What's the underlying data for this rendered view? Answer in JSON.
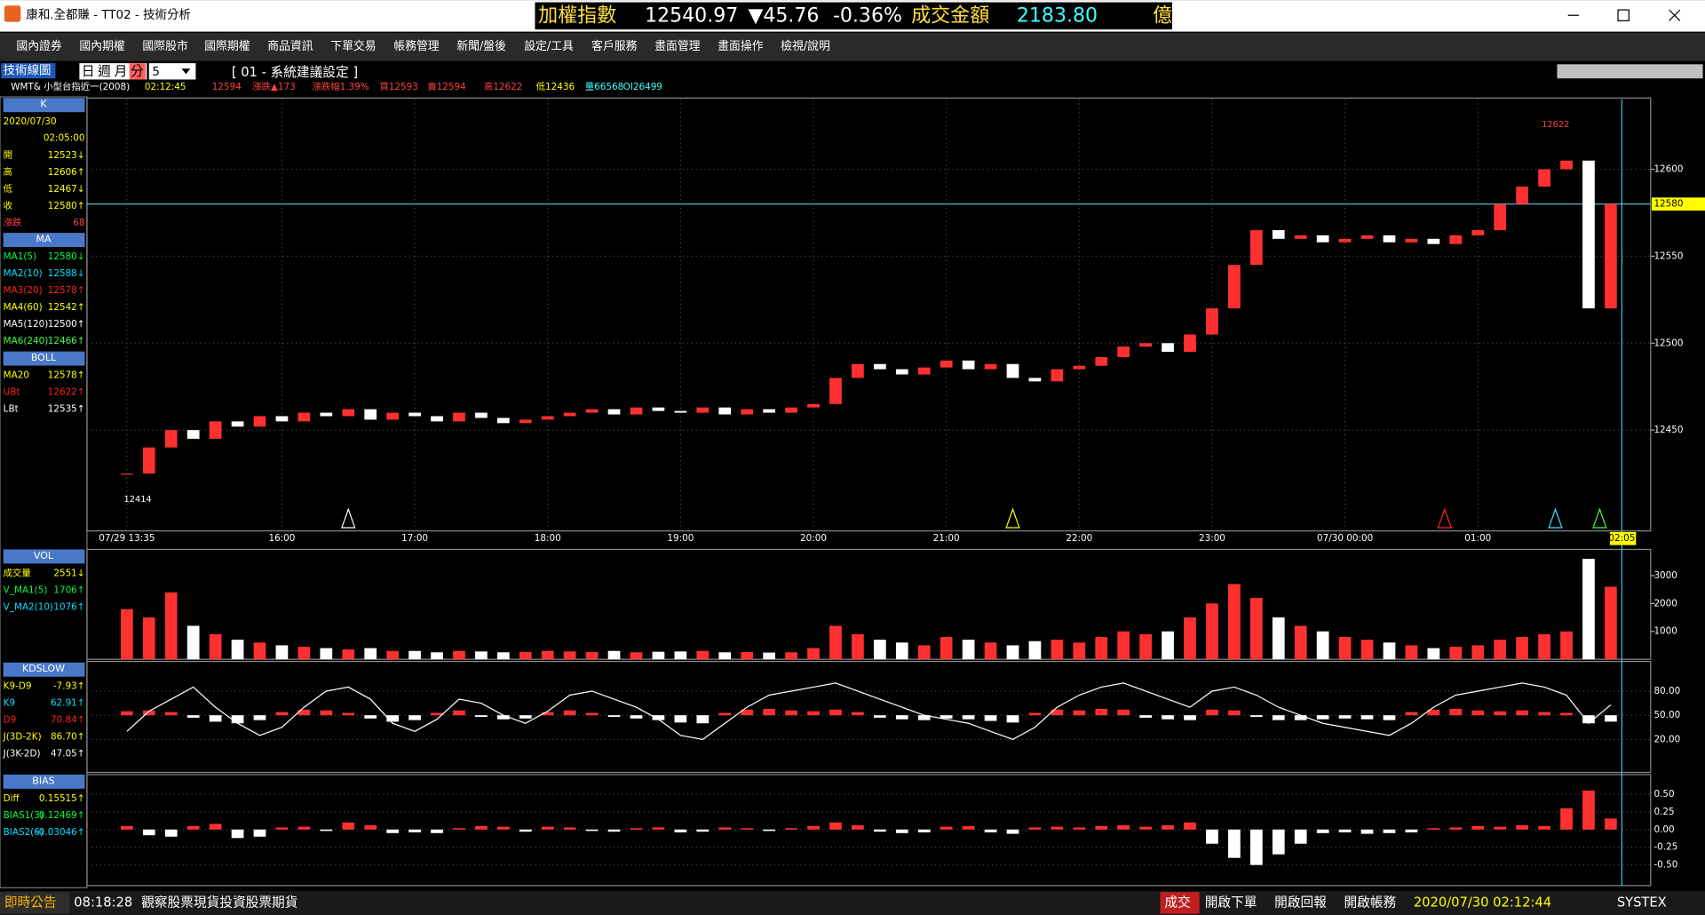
{
  "title_bar": {
    "title": "康和.全都賺 - TT02 - 技術分析"
  },
  "ticker": {
    "index_name": "加權指數",
    "index_value": "12540.97",
    "change": "▼45.76",
    "change_pct": "-0.36%",
    "turnover_label": "成交金額",
    "turnover": "2183.80",
    "unit": "億"
  },
  "menu": [
    "國內證券",
    "國內期權",
    "國際股市",
    "國際期權",
    "商品資訊",
    "下單交易",
    "帳務管理",
    "新聞/盤後",
    "設定/工具",
    "客戶服務",
    "畫面管理",
    "畫面操作",
    "檢視/說明"
  ],
  "toolbar": {
    "name": "技術線圖",
    "periods": [
      "日",
      "週",
      "月",
      "分"
    ],
    "interval": "5",
    "setting": "[ 01 - 系統建議設定 ]"
  },
  "quote": {
    "symbol": "WMT& 小型台指近一(2008)",
    "time": "02:12:45",
    "price": "12594",
    "change": "漲跌▲173",
    "change_pct": "漲跌幅1.39%",
    "bid": "買12593",
    "ask": "賣12594",
    "high": "高12622",
    "low": "低12436",
    "volume": "量66568",
    "oi": "OI26499"
  },
  "left_panel": [
    {
      "header": "K",
      "date": "2020/07/30",
      "time": "02:05:00",
      "rows": [
        {
          "label": "開",
          "value": "12523↓",
          "color": "#ffff00"
        },
        {
          "label": "高",
          "value": "12606↑",
          "color": "#ffff00"
        },
        {
          "label": "低",
          "value": "12467↓",
          "color": "#ffff00"
        },
        {
          "label": "收",
          "value": "12580↑",
          "color": "#ffff00"
        },
        {
          "label": "漲跌",
          "value": "68",
          "color": "#ff4040"
        }
      ]
    },
    {
      "header": "MA",
      "rows": [
        {
          "label": "MA1(5)",
          "value": "12580↓",
          "color": "#00ff40"
        },
        {
          "label": "MA2(10)",
          "value": "12588↓",
          "color": "#00e0ff"
        },
        {
          "label": "MA3(20)",
          "value": "12578↑",
          "color": "#ff2020"
        },
        {
          "label": "MA4(60)",
          "value": "12542↑",
          "color": "#ffff00"
        },
        {
          "label": "MA5(120)",
          "value": "12500↑",
          "color": "#ffffff"
        },
        {
          "label": "MA6(240)",
          "value": "12466↑",
          "color": "#40ff40"
        }
      ]
    },
    {
      "header": "BOLL",
      "rows": [
        {
          "label": "MA20",
          "value": "12578↑",
          "color": "#ffff00"
        },
        {
          "label": "UBt",
          "value": "12622↑",
          "color": "#ff2020"
        },
        {
          "label": "LBt",
          "value": "12535↑",
          "color": "#ffffff"
        }
      ]
    },
    {
      "header": "VOL",
      "rows": [
        {
          "label": "成交量",
          "value": "2551↓",
          "color": "#ffff00"
        },
        {
          "label": "V_MA1(5)",
          "value": "1706↑",
          "color": "#00ff40"
        },
        {
          "label": "V_MA2(10)",
          "value": "1076↑",
          "color": "#00e0ff"
        }
      ]
    },
    {
      "header": "KDSLOW",
      "rows": [
        {
          "label": "K9-D9",
          "value": "-7.93↑",
          "color": "#ffff00"
        },
        {
          "label": "K9",
          "value": "62.91↑",
          "color": "#00e0ff"
        },
        {
          "label": "D9",
          "value": "70.84↑",
          "color": "#ff2020"
        },
        {
          "label": "J(3D-2K)",
          "value": "86.70↑",
          "color": "#ffff00"
        },
        {
          "label": "J(3K-2D)",
          "value": "47.05↑",
          "color": "#ffffff"
        }
      ]
    },
    {
      "header": "BIAS",
      "rows": [
        {
          "label": "Diff",
          "value": "0.15515↑",
          "color": "#ffff00"
        },
        {
          "label": "BIAS1(3)",
          "value": "0.12469↑",
          "color": "#00ff40"
        },
        {
          "label": "BIAS2(6)",
          "value": "-0.03046↑",
          "color": "#00e0ff"
        }
      ]
    }
  ],
  "chart": {
    "xlim": [
      -1.8,
      68.8
    ],
    "xticks": [
      {
        "value": 0,
        "label": "07/29 13:35"
      },
      {
        "value": 7,
        "label": "16:00"
      },
      {
        "value": 13,
        "label": "17:00"
      },
      {
        "value": 19,
        "label": "18:00"
      },
      {
        "value": 25,
        "label": "19:00"
      },
      {
        "value": 31,
        "label": "20:00"
      },
      {
        "value": 37,
        "label": "21:00"
      },
      {
        "value": 43,
        "label": "22:00"
      },
      {
        "value": 49,
        "label": "23:00"
      },
      {
        "value": 55,
        "label": "07/30 00:00"
      },
      {
        "value": 61,
        "label": "01:00"
      },
      {
        "value": 67.5,
        "label": "02:05"
      }
    ],
    "price": {
      "ylim": [
        12392,
        12641
      ],
      "yticks": [
        12450,
        12500,
        12550,
        12600
      ],
      "last": 12580,
      "high_label": 12622,
      "low_label": 12414,
      "up_color": "#ff3030",
      "down_color": "#ffffff",
      "closes": [
        12425,
        12440,
        12450,
        12445,
        12455,
        12452,
        12458,
        12455,
        12460,
        12458,
        12462,
        12456,
        12460,
        12458,
        12455,
        12460,
        12457,
        12454,
        12456,
        12458,
        12460,
        12462,
        12459,
        12463,
        12461,
        12460,
        12463,
        12459,
        12462,
        12460,
        12463,
        12465,
        12480,
        12488,
        12485,
        12482,
        12486,
        12490,
        12485,
        12488,
        12480,
        12478,
        12485,
        12487,
        12492,
        12498,
        12500,
        12495,
        12505,
        12520,
        12545,
        12565,
        12560,
        12562,
        12558,
        12560,
        12562,
        12558,
        12560,
        12557,
        12562,
        12565,
        12580,
        12590,
        12600,
        12605,
        12520,
        12580
      ]
    },
    "volume": {
      "ylim": [
        0,
        3900
      ],
      "yticks": [
        1000,
        2000,
        3000
      ],
      "values": [
        1800,
        1500,
        2400,
        1200,
        900,
        700,
        600,
        500,
        450,
        400,
        350,
        400,
        300,
        300,
        250,
        300,
        280,
        250,
        260,
        300,
        280,
        260,
        300,
        250,
        270,
        280,
        300,
        250,
        260,
        240,
        250,
        400,
        1200,
        900,
        700,
        600,
        500,
        800,
        700,
        600,
        500,
        650,
        700,
        600,
        800,
        1000,
        900,
        1000,
        1500,
        2000,
        2700,
        2200,
        1500,
        1200,
        1000,
        800,
        700,
        600,
        500,
        400,
        450,
        500,
        700,
        800,
        900,
        1000,
        3600,
        2600
      ]
    },
    "kd": {
      "ylim": [
        -21,
        115.5
      ],
      "yticks": [
        {
          "value": 80,
          "label": "80.00"
        },
        {
          "value": 50,
          "label": "50.00"
        },
        {
          "value": 20,
          "label": "20.00"
        }
      ],
      "line_color": "#ffffff",
      "k": [
        30,
        55,
        70,
        85,
        60,
        40,
        25,
        35,
        60,
        80,
        85,
        70,
        40,
        30,
        45,
        70,
        65,
        50,
        40,
        55,
        75,
        80,
        70,
        60,
        45,
        25,
        20,
        40,
        60,
        75,
        80,
        85,
        90,
        80,
        70,
        60,
        50,
        45,
        40,
        30,
        20,
        35,
        60,
        75,
        85,
        90,
        80,
        70,
        60,
        80,
        85,
        75,
        60,
        50,
        40,
        35,
        30,
        25,
        40,
        60,
        75,
        80,
        85,
        90,
        85,
        75,
        40,
        62.91
      ],
      "diff": [
        5,
        6,
        4,
        -3,
        -8,
        -10,
        -6,
        4,
        7,
        6,
        3,
        -4,
        -8,
        -6,
        3,
        6,
        -2,
        -5,
        -4,
        4,
        6,
        3,
        -2,
        -4,
        -6,
        -9,
        -10,
        3,
        7,
        8,
        6,
        5,
        7,
        4,
        -3,
        -5,
        -6,
        -4,
        -5,
        -7,
        -9,
        3,
        7,
        6,
        8,
        7,
        -3,
        -5,
        -6,
        7,
        6,
        -2,
        -6,
        -6,
        -5,
        -4,
        -5,
        -6,
        4,
        7,
        8,
        6,
        5,
        6,
        4,
        3,
        -10,
        -7.93
      ]
    },
    "bias": {
      "ylim": [
        -0.79,
        0.76
      ],
      "yticks": [
        {
          "value": 0.5,
          "label": "0.50"
        },
        {
          "value": 0.25,
          "label": "0.25"
        },
        {
          "value": 0,
          "label": "0.00"
        },
        {
          "value": -0.25,
          "label": "-0.25"
        },
        {
          "value": -0.5,
          "label": "-0.50"
        }
      ],
      "diff": [
        0.05,
        -0.08,
        -0.1,
        0.05,
        0.08,
        -0.12,
        -0.1,
        0.03,
        0.04,
        -0.02,
        0.1,
        0.06,
        -0.05,
        -0.04,
        -0.05,
        0.02,
        0.05,
        0.04,
        -0.03,
        0.04,
        0.03,
        -0.02,
        -0.03,
        0.02,
        0.03,
        -0.04,
        -0.03,
        0.03,
        0.02,
        -0.02,
        0.02,
        0.05,
        0.1,
        0.06,
        -0.03,
        -0.05,
        -0.04,
        0.04,
        0.05,
        -0.04,
        -0.06,
        0.03,
        0.04,
        0.03,
        0.05,
        0.06,
        0.04,
        0.06,
        0.1,
        -0.2,
        -0.4,
        -0.5,
        -0.35,
        -0.2,
        -0.05,
        -0.04,
        -0.06,
        -0.05,
        -0.04,
        0.02,
        0.03,
        0.05,
        0.04,
        0.06,
        0.05,
        0.3,
        0.55,
        0.15515
      ]
    }
  },
  "status_bar": {
    "notice": "即時公告",
    "time": "08:18:28",
    "message": "觀察股票現貨投資股票期貨",
    "trade": "成交",
    "open_order": "開啟下單",
    "open_report": "開啟回報",
    "open_account": "開啟帳務",
    "datetime": "2020/07/30 02:12:44",
    "brand": "SYSTEX"
  }
}
